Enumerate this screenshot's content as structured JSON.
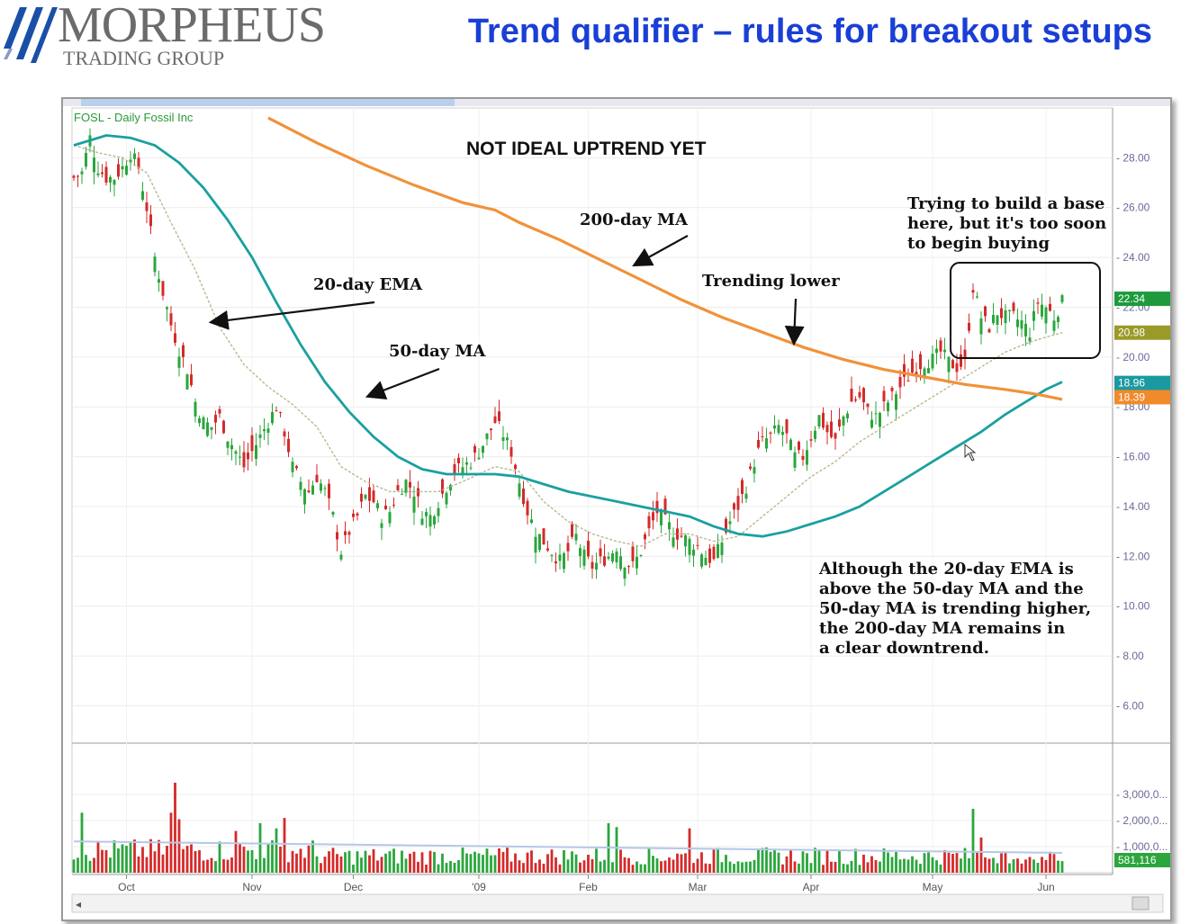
{
  "header": {
    "logo_name": "MORPHEUS",
    "logo_sub": "TRADING GROUP",
    "title": "Trend qualifier – rules for breakout setups"
  },
  "chart_data": {
    "type": "candlestick",
    "symbol_label": "FOSL - Daily  Fossil Inc",
    "headline": "NOT IDEAL UPTREND YET",
    "ylim": [
      4.5,
      30
    ],
    "y_ticks": [
      "28.00",
      "26.00",
      "24.00",
      "22.00",
      "20.00",
      "18.00",
      "16.00",
      "14.00",
      "12.00",
      "10.00",
      "8.00",
      "6.00"
    ],
    "x_ticks": [
      "Oct",
      "Nov",
      "Dec",
      "'09",
      "Feb",
      "Mar",
      "Apr",
      "May",
      "Jun"
    ],
    "volume_ticks": [
      "3,000,0...",
      "2,000,0...",
      "1,000,0..."
    ],
    "volume_last_label": "581,116",
    "price_badges": [
      {
        "label": "22.34",
        "color": "#1e9a3c"
      },
      {
        "label": "20.98",
        "color": "#9a9a2a"
      },
      {
        "label": "18.96",
        "color": "#1a9aa0"
      },
      {
        "label": "18.39",
        "color": "#f08a2a"
      }
    ],
    "colors": {
      "up": "#2aa63c",
      "down": "#d42a2a",
      "ma50": "#1aa0a0",
      "ma200": "#f0923a",
      "ema20": "#b8b890"
    },
    "anchors": [
      [
        0,
        27.2
      ],
      [
        2,
        27.4
      ],
      [
        4,
        28.8
      ],
      [
        6,
        27.6
      ],
      [
        8,
        27.2
      ],
      [
        10,
        27.2
      ],
      [
        12,
        27.6
      ],
      [
        14,
        28.2
      ],
      [
        16,
        27.6
      ],
      [
        18,
        26.0
      ],
      [
        20,
        24.0
      ],
      [
        22,
        22.6
      ],
      [
        24,
        21.3
      ],
      [
        26,
        20.3
      ],
      [
        28,
        19.5
      ],
      [
        30,
        18.2
      ],
      [
        32,
        17.4
      ],
      [
        34,
        17.2
      ],
      [
        36,
        17.6
      ],
      [
        38,
        16.8
      ],
      [
        40,
        16.2
      ],
      [
        42,
        15.6
      ],
      [
        44,
        16.2
      ],
      [
        46,
        16.8
      ],
      [
        48,
        17.4
      ],
      [
        50,
        18.0
      ],
      [
        52,
        17.0
      ],
      [
        54,
        15.6
      ],
      [
        56,
        15.0
      ],
      [
        58,
        14.6
      ],
      [
        60,
        15.2
      ],
      [
        62,
        14.6
      ],
      [
        64,
        13.6
      ],
      [
        66,
        12.2
      ],
      [
        68,
        13.0
      ],
      [
        70,
        13.6
      ],
      [
        72,
        14.4
      ],
      [
        74,
        14.2
      ],
      [
        76,
        13.6
      ],
      [
        78,
        13.8
      ],
      [
        80,
        14.6
      ],
      [
        82,
        15.0
      ],
      [
        84,
        14.6
      ],
      [
        86,
        13.8
      ],
      [
        88,
        13.6
      ],
      [
        90,
        14.2
      ],
      [
        92,
        14.8
      ],
      [
        94,
        15.4
      ],
      [
        96,
        15.6
      ],
      [
        98,
        15.8
      ],
      [
        100,
        16.2
      ],
      [
        102,
        16.8
      ],
      [
        104,
        17.4
      ],
      [
        106,
        16.9
      ],
      [
        108,
        16.2
      ],
      [
        110,
        15.0
      ],
      [
        112,
        13.8
      ],
      [
        114,
        13.0
      ],
      [
        116,
        12.6
      ],
      [
        118,
        12.2
      ],
      [
        120,
        11.8
      ],
      [
        122,
        12.2
      ],
      [
        124,
        12.8
      ],
      [
        126,
        12.0
      ],
      [
        128,
        11.6
      ],
      [
        130,
        11.8
      ],
      [
        132,
        12.0
      ],
      [
        134,
        12.4
      ],
      [
        136,
        11.8
      ],
      [
        138,
        11.6
      ],
      [
        140,
        12.2
      ],
      [
        142,
        13.0
      ],
      [
        144,
        13.8
      ],
      [
        146,
        13.4
      ],
      [
        148,
        13.0
      ],
      [
        150,
        12.8
      ],
      [
        152,
        12.6
      ],
      [
        154,
        12.4
      ],
      [
        156,
        12.0
      ],
      [
        158,
        11.8
      ],
      [
        160,
        12.6
      ],
      [
        162,
        13.4
      ],
      [
        164,
        14.0
      ],
      [
        166,
        14.8
      ],
      [
        168,
        15.8
      ],
      [
        170,
        16.6
      ],
      [
        172,
        16.8
      ],
      [
        174,
        17.2
      ],
      [
        176,
        16.8
      ],
      [
        178,
        16.0
      ],
      [
        180,
        16.0
      ],
      [
        182,
        16.8
      ],
      [
        184,
        17.6
      ],
      [
        186,
        17.0
      ],
      [
        188,
        16.6
      ],
      [
        190,
        17.6
      ],
      [
        192,
        18.2
      ],
      [
        194,
        18.4
      ],
      [
        196,
        17.8
      ],
      [
        198,
        17.6
      ],
      [
        200,
        18.0
      ],
      [
        202,
        18.4
      ],
      [
        204,
        18.8
      ],
      [
        206,
        19.2
      ],
      [
        208,
        19.6
      ],
      [
        210,
        19.8
      ],
      [
        212,
        19.9
      ],
      [
        214,
        20.2
      ],
      [
        216,
        19.8
      ],
      [
        218,
        19.6
      ],
      [
        220,
        19.8
      ],
      [
        222,
        22.8
      ],
      [
        224,
        21.6
      ],
      [
        226,
        21.2
      ],
      [
        228,
        21.8
      ],
      [
        230,
        21.6
      ],
      [
        232,
        21.6
      ],
      [
        234,
        21.4
      ],
      [
        236,
        21.0
      ],
      [
        238,
        22.2
      ],
      [
        240,
        22.0
      ],
      [
        242,
        21.6
      ],
      [
        244,
        22.2
      ]
    ],
    "ma50": [
      [
        0,
        28.5
      ],
      [
        8,
        28.9
      ],
      [
        14,
        28.8
      ],
      [
        20,
        28.5
      ],
      [
        26,
        27.8
      ],
      [
        32,
        26.8
      ],
      [
        38,
        25.5
      ],
      [
        44,
        24.0
      ],
      [
        50,
        22.2
      ],
      [
        56,
        20.5
      ],
      [
        62,
        19.0
      ],
      [
        68,
        17.8
      ],
      [
        74,
        16.8
      ],
      [
        80,
        16.0
      ],
      [
        86,
        15.5
      ],
      [
        92,
        15.3
      ],
      [
        98,
        15.3
      ],
      [
        104,
        15.3
      ],
      [
        110,
        15.2
      ],
      [
        116,
        14.9
      ],
      [
        122,
        14.6
      ],
      [
        128,
        14.4
      ],
      [
        134,
        14.2
      ],
      [
        140,
        14.0
      ],
      [
        146,
        13.8
      ],
      [
        152,
        13.6
      ],
      [
        158,
        13.2
      ],
      [
        164,
        12.9
      ],
      [
        170,
        12.8
      ],
      [
        176,
        13.0
      ],
      [
        182,
        13.3
      ],
      [
        188,
        13.6
      ],
      [
        194,
        14.0
      ],
      [
        200,
        14.6
      ],
      [
        206,
        15.2
      ],
      [
        212,
        15.8
      ],
      [
        218,
        16.4
      ],
      [
        224,
        17.0
      ],
      [
        230,
        17.7
      ],
      [
        236,
        18.3
      ],
      [
        240,
        18.7
      ],
      [
        244,
        19.0
      ]
    ],
    "ma200": [
      [
        48,
        29.6
      ],
      [
        60,
        28.6
      ],
      [
        72,
        27.7
      ],
      [
        84,
        26.9
      ],
      [
        96,
        26.2
      ],
      [
        104,
        25.9
      ],
      [
        110,
        25.4
      ],
      [
        120,
        24.7
      ],
      [
        130,
        23.9
      ],
      [
        140,
        23.1
      ],
      [
        150,
        22.3
      ],
      [
        160,
        21.6
      ],
      [
        170,
        21.0
      ],
      [
        180,
        20.4
      ],
      [
        190,
        19.9
      ],
      [
        200,
        19.5
      ],
      [
        210,
        19.2
      ],
      [
        220,
        18.9
      ],
      [
        230,
        18.7
      ],
      [
        238,
        18.5
      ],
      [
        244,
        18.3
      ]
    ],
    "ema20": [
      [
        0,
        28.5
      ],
      [
        6,
        28.2
      ],
      [
        12,
        28.0
      ],
      [
        18,
        27.4
      ],
      [
        24,
        25.4
      ],
      [
        30,
        23.5
      ],
      [
        36,
        21.2
      ],
      [
        42,
        19.7
      ],
      [
        48,
        18.8
      ],
      [
        54,
        18.1
      ],
      [
        60,
        17.2
      ],
      [
        66,
        15.6
      ],
      [
        72,
        15.0
      ],
      [
        78,
        14.6
      ],
      [
        84,
        14.6
      ],
      [
        90,
        14.6
      ],
      [
        96,
        15.0
      ],
      [
        104,
        15.6
      ],
      [
        110,
        15.4
      ],
      [
        116,
        14.2
      ],
      [
        122,
        13.4
      ],
      [
        128,
        12.9
      ],
      [
        134,
        12.6
      ],
      [
        140,
        12.4
      ],
      [
        146,
        12.9
      ],
      [
        152,
        12.9
      ],
      [
        158,
        12.6
      ],
      [
        164,
        12.8
      ],
      [
        170,
        13.6
      ],
      [
        176,
        14.4
      ],
      [
        182,
        15.2
      ],
      [
        188,
        15.8
      ],
      [
        194,
        16.6
      ],
      [
        200,
        17.2
      ],
      [
        206,
        17.8
      ],
      [
        212,
        18.4
      ],
      [
        218,
        19.0
      ],
      [
        224,
        19.6
      ],
      [
        230,
        20.2
      ],
      [
        236,
        20.6
      ],
      [
        240,
        20.8
      ],
      [
        244,
        20.98
      ]
    ],
    "volume_spikes": [
      [
        2,
        2.3
      ],
      [
        24,
        2.3
      ],
      [
        25,
        3.45
      ],
      [
        26,
        2.05
      ],
      [
        40,
        1.6
      ],
      [
        46,
        1.9
      ],
      [
        50,
        1.7
      ],
      [
        52,
        2.1
      ],
      [
        132,
        1.9
      ],
      [
        134,
        1.75
      ],
      [
        152,
        1.7
      ],
      [
        222,
        2.45
      ],
      [
        224,
        1.35
      ]
    ],
    "annotations": {
      "ema20": "20-day EMA",
      "ma50": "50-day MA",
      "ma200": "200-day MA",
      "trending_lower": "Trending lower",
      "base_note": [
        "Trying to build a base",
        "here, but it's too soon",
        "to begin buying"
      ],
      "summary": [
        "Although the 20-day EMA is",
        "above the 50-day MA and the",
        "50-day MA is trending higher,",
        "the 200-day MA remains in",
        "a clear downtrend."
      ]
    }
  }
}
